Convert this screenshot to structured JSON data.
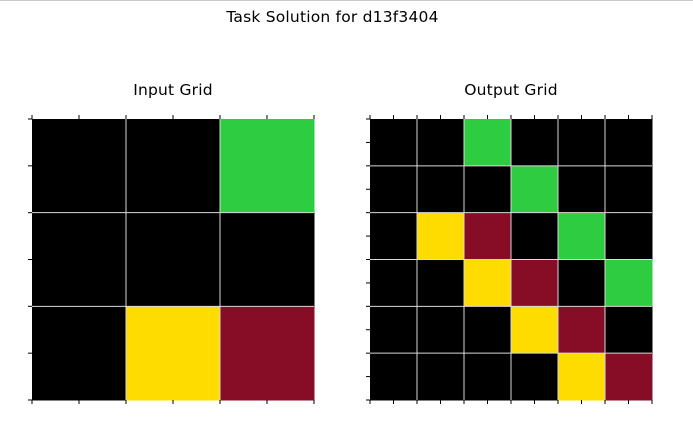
{
  "title": "Task Solution for d13f3404",
  "colors": {
    "black": "#000000",
    "green": "#2ECC40",
    "yellow": "#FFDC00",
    "maroon": "#870C25",
    "gridline": "#d9d9d9"
  },
  "chart_data": [
    {
      "type": "heatmap",
      "title": "Input Grid",
      "xlabel": "",
      "ylabel": "",
      "rows": 3,
      "cols": 3,
      "grid": true,
      "palette": {
        "0": "#000000",
        "3": "#2ECC40",
        "4": "#FFDC00",
        "9": "#870C25"
      },
      "values": [
        [
          0,
          0,
          3
        ],
        [
          0,
          0,
          0
        ],
        [
          0,
          4,
          9
        ]
      ]
    },
    {
      "type": "heatmap",
      "title": "Output Grid",
      "xlabel": "",
      "ylabel": "",
      "rows": 6,
      "cols": 6,
      "grid": true,
      "palette": {
        "0": "#000000",
        "3": "#2ECC40",
        "4": "#FFDC00",
        "9": "#870C25"
      },
      "values": [
        [
          0,
          0,
          3,
          0,
          0,
          0
        ],
        [
          0,
          0,
          0,
          3,
          0,
          0
        ],
        [
          0,
          4,
          9,
          0,
          3,
          0
        ],
        [
          0,
          0,
          4,
          9,
          0,
          3
        ],
        [
          0,
          0,
          0,
          4,
          9,
          0
        ],
        [
          0,
          0,
          0,
          0,
          4,
          9
        ]
      ]
    }
  ]
}
